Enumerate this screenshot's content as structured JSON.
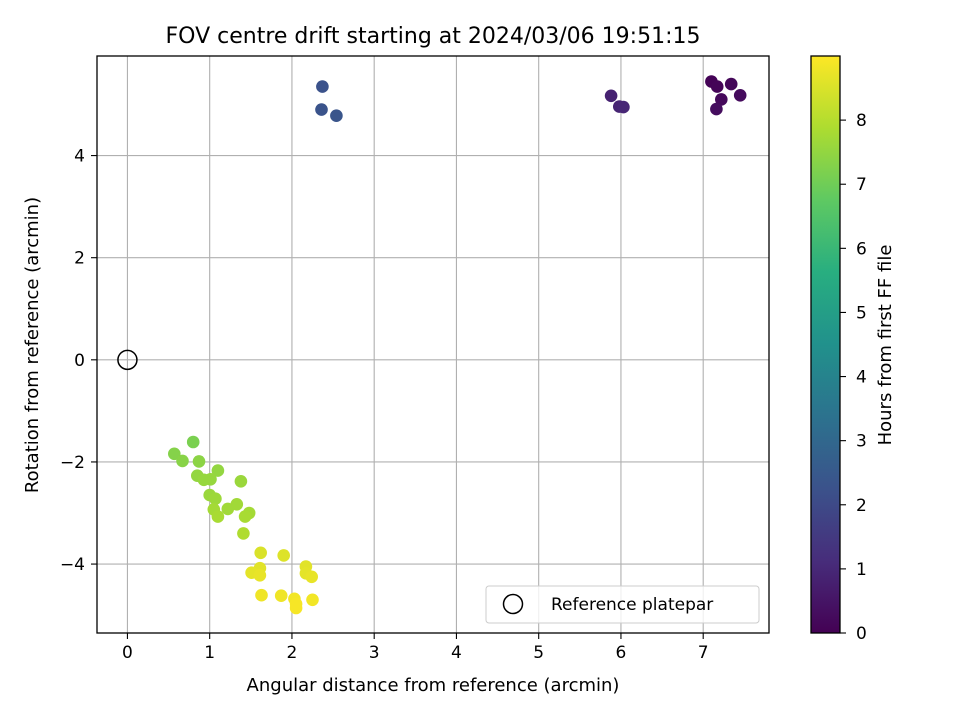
{
  "chart_data": {
    "type": "scatter",
    "title": "FOV centre drift starting at 2024/03/06 19:51:15",
    "xlabel": "Angular distance from reference (arcmin)",
    "ylabel": "Rotation from reference (arcmin)",
    "xlim": [
      -0.37,
      7.8
    ],
    "ylim": [
      -5.35,
      5.95
    ],
    "x_ticks": [
      0,
      1,
      2,
      3,
      4,
      5,
      6,
      7
    ],
    "y_ticks": [
      -4,
      -2,
      0,
      2,
      4
    ],
    "grid": true,
    "colorbar": {
      "label": "Hours from first FF file",
      "range": [
        0,
        9
      ],
      "ticks": [
        0,
        1,
        2,
        3,
        4,
        5,
        6,
        7,
        8
      ],
      "colormap": "viridis"
    },
    "reference": {
      "x": 0,
      "y": 0,
      "label": "Reference platepar"
    },
    "legend": {
      "location": "lower-right",
      "entries": [
        "Reference platepar"
      ]
    },
    "points": [
      {
        "x": 7.1,
        "y": 5.45,
        "hours": 0.05
      },
      {
        "x": 7.17,
        "y": 5.35,
        "hours": 0.1
      },
      {
        "x": 7.34,
        "y": 5.4,
        "hours": 0.15
      },
      {
        "x": 7.22,
        "y": 5.1,
        "hours": 0.2
      },
      {
        "x": 7.45,
        "y": 5.18,
        "hours": 0.25
      },
      {
        "x": 7.16,
        "y": 4.91,
        "hours": 0.3
      },
      {
        "x": 5.88,
        "y": 5.17,
        "hours": 0.85
      },
      {
        "x": 5.98,
        "y": 4.96,
        "hours": 0.9
      },
      {
        "x": 6.03,
        "y": 4.95,
        "hours": 0.95
      },
      {
        "x": 2.37,
        "y": 5.35,
        "hours": 2.25
      },
      {
        "x": 2.36,
        "y": 4.9,
        "hours": 2.3
      },
      {
        "x": 2.54,
        "y": 4.78,
        "hours": 2.35
      },
      {
        "x": 0.8,
        "y": -1.61,
        "hours": 7.15
      },
      {
        "x": 0.57,
        "y": -1.84,
        "hours": 7.3
      },
      {
        "x": 0.67,
        "y": -1.98,
        "hours": 7.35
      },
      {
        "x": 0.87,
        "y": -1.99,
        "hours": 7.4
      },
      {
        "x": 1.1,
        "y": -2.17,
        "hours": 7.5
      },
      {
        "x": 0.85,
        "y": -2.27,
        "hours": 7.5
      },
      {
        "x": 0.93,
        "y": -2.35,
        "hours": 7.55
      },
      {
        "x": 1.01,
        "y": -2.34,
        "hours": 7.55
      },
      {
        "x": 1.38,
        "y": -2.38,
        "hours": 7.6
      },
      {
        "x": 1.0,
        "y": -2.65,
        "hours": 7.6
      },
      {
        "x": 1.07,
        "y": -2.72,
        "hours": 7.65
      },
      {
        "x": 1.33,
        "y": -2.83,
        "hours": 7.7
      },
      {
        "x": 1.22,
        "y": -2.92,
        "hours": 7.7
      },
      {
        "x": 1.05,
        "y": -2.93,
        "hours": 7.75
      },
      {
        "x": 1.48,
        "y": -3.0,
        "hours": 7.75
      },
      {
        "x": 1.43,
        "y": -3.07,
        "hours": 7.8
      },
      {
        "x": 1.1,
        "y": -3.07,
        "hours": 7.8
      },
      {
        "x": 1.41,
        "y": -3.4,
        "hours": 7.9
      },
      {
        "x": 1.62,
        "y": -3.78,
        "hours": 8.5
      },
      {
        "x": 1.9,
        "y": -3.83,
        "hours": 8.55
      },
      {
        "x": 2.17,
        "y": -4.05,
        "hours": 8.6
      },
      {
        "x": 1.61,
        "y": -4.08,
        "hours": 8.6
      },
      {
        "x": 1.51,
        "y": -4.17,
        "hours": 8.65
      },
      {
        "x": 2.17,
        "y": -4.18,
        "hours": 8.65
      },
      {
        "x": 1.61,
        "y": -4.22,
        "hours": 8.7
      },
      {
        "x": 2.24,
        "y": -4.25,
        "hours": 8.7
      },
      {
        "x": 1.63,
        "y": -4.61,
        "hours": 8.8
      },
      {
        "x": 1.87,
        "y": -4.62,
        "hours": 8.8
      },
      {
        "x": 2.03,
        "y": -4.68,
        "hours": 8.85
      },
      {
        "x": 2.25,
        "y": -4.7,
        "hours": 8.85
      },
      {
        "x": 2.05,
        "y": -4.78,
        "hours": 8.9
      },
      {
        "x": 2.05,
        "y": -4.86,
        "hours": 8.9
      }
    ]
  }
}
